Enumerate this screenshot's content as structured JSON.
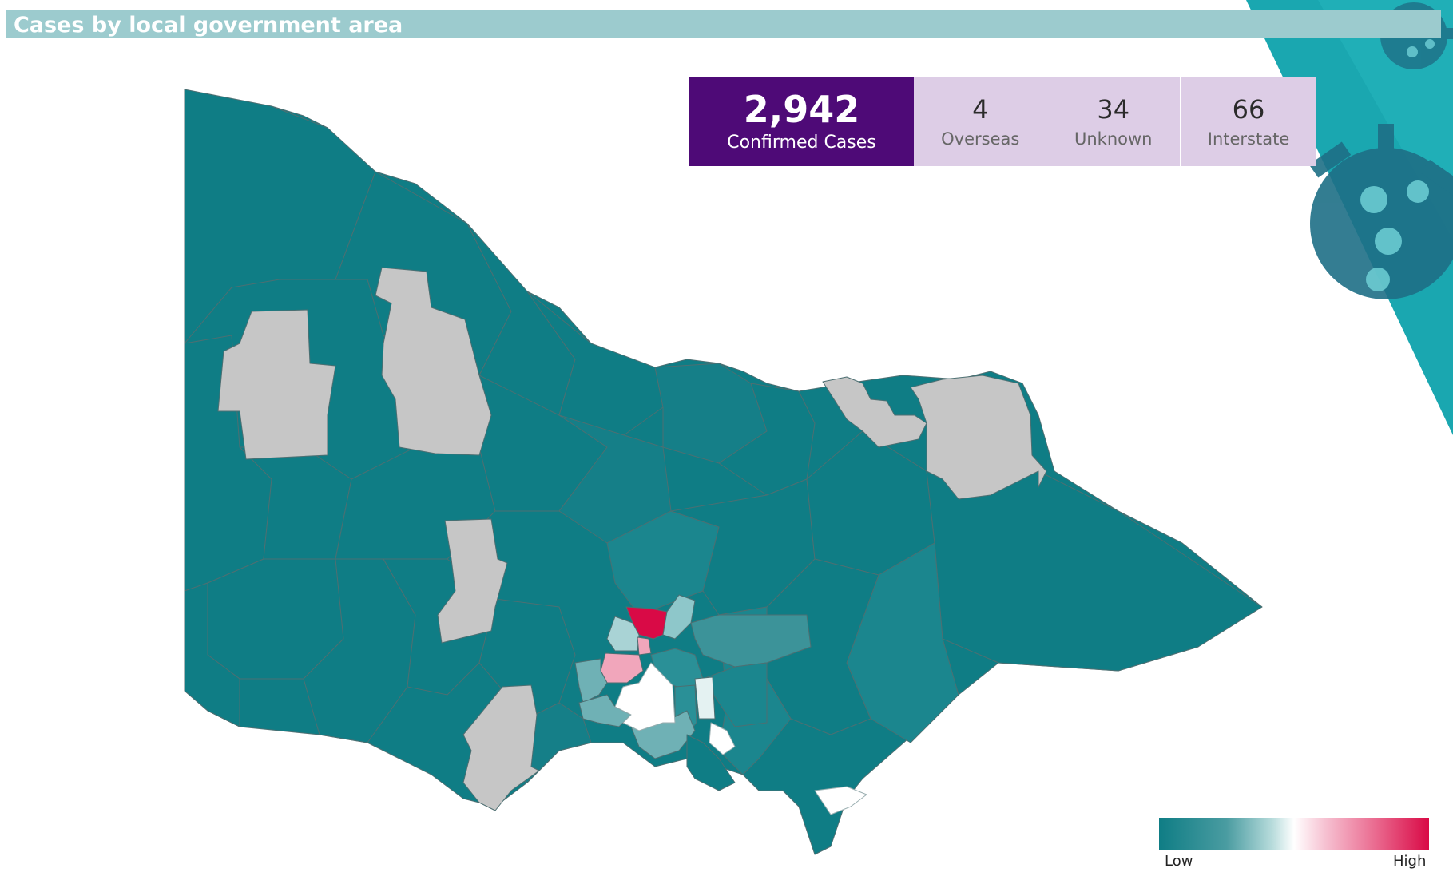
{
  "header": {
    "title": "Cases by local government area"
  },
  "summary": {
    "confirmed": {
      "value": "2,942",
      "label": "Confirmed Cases"
    },
    "overseas": {
      "value": "4",
      "label": "Overseas"
    },
    "unknown": {
      "value": "34",
      "label": "Unknown"
    },
    "interstate": {
      "value": "66",
      "label": "Interstate"
    }
  },
  "legend": {
    "low": "Low",
    "high": "High"
  },
  "colors": {
    "title_bar": "#9ccbce",
    "confirmed_bg": "#4e0a77",
    "stat_bg": "#ddcde6",
    "region_dark": "#0f7d85",
    "region_mid": "#1b868e",
    "region_no_cases": "#c6c6c6",
    "region_light": "#8ec7ca",
    "region_pink": "#f1a6bb",
    "region_red": "#d90a46",
    "boundary": "#4d6f72"
  }
}
